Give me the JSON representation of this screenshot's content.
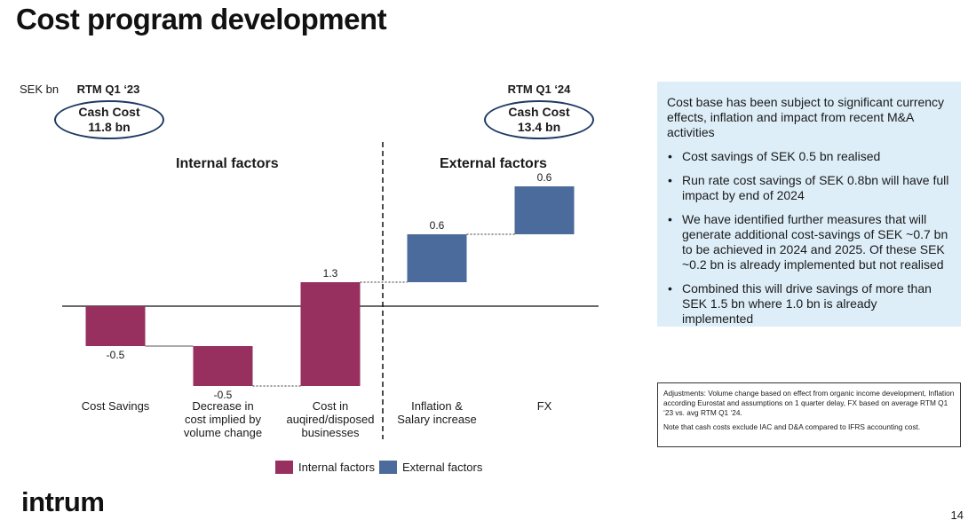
{
  "title": "Cost program development",
  "unit_label": "SEK bn",
  "start": {
    "period": "RTM Q1 ‘23",
    "label": "Cash Cost",
    "value": "11.8 bn"
  },
  "end": {
    "period": "RTM Q1 ‘24",
    "label": "Cash Cost",
    "value": "13.4 bn"
  },
  "sections": {
    "internal": "Internal factors",
    "external": "External factors"
  },
  "legend": [
    {
      "label": "Internal factors",
      "color": "#97305e"
    },
    {
      "label": "External factors",
      "color": "#4a6b9b"
    }
  ],
  "chart_data": {
    "type": "waterfall",
    "unit": "SEK bn",
    "categories": [
      [
        "Cost Savings"
      ],
      [
        "Decrease in",
        "cost implied by",
        "volume change"
      ],
      [
        "Cost in",
        "auqired/disposed",
        "businesses"
      ],
      [
        "Inflation &",
        "Salary increase"
      ],
      [
        "FX"
      ]
    ],
    "values": [
      -0.5,
      -0.5,
      1.3,
      0.6,
      0.6
    ],
    "labels": [
      "-0.5",
      "-0.5",
      "1.3",
      "0.6",
      "0.6"
    ],
    "groups": [
      "internal",
      "internal",
      "internal",
      "external",
      "external"
    ],
    "colors": {
      "internal": "#97305e",
      "external": "#4a6b9b"
    }
  },
  "info": {
    "intro": "Cost base has been subject to significant currency effects, inflation and impact from recent M&A activities",
    "bullets": [
      "Cost savings of SEK 0.5 bn realised",
      "Run rate cost savings of SEK 0.8bn will have full impact by end of 2024",
      "We have identified further measures that will generate additional cost-savings of SEK ~0.7 bn to be achieved in 2024 and 2025. Of these SEK ~0.2 bn is already implemented but not realised",
      "Combined this will drive savings of more than SEK 1.5 bn where 1.0 bn is already implemented"
    ]
  },
  "notes": {
    "adjustments": "Adjustments: Volume change based on effect from organic income development, Inflation according Eurostat and assumptions on 1 quarter delay, FX based on average RTM Q1 ‘23 vs. avg RTM Q1 ‘24.",
    "cash_costs": "Note that cash costs exclude IAC and D&A compared to IFRS accounting cost."
  },
  "logo": "intrum",
  "page_number": "14"
}
